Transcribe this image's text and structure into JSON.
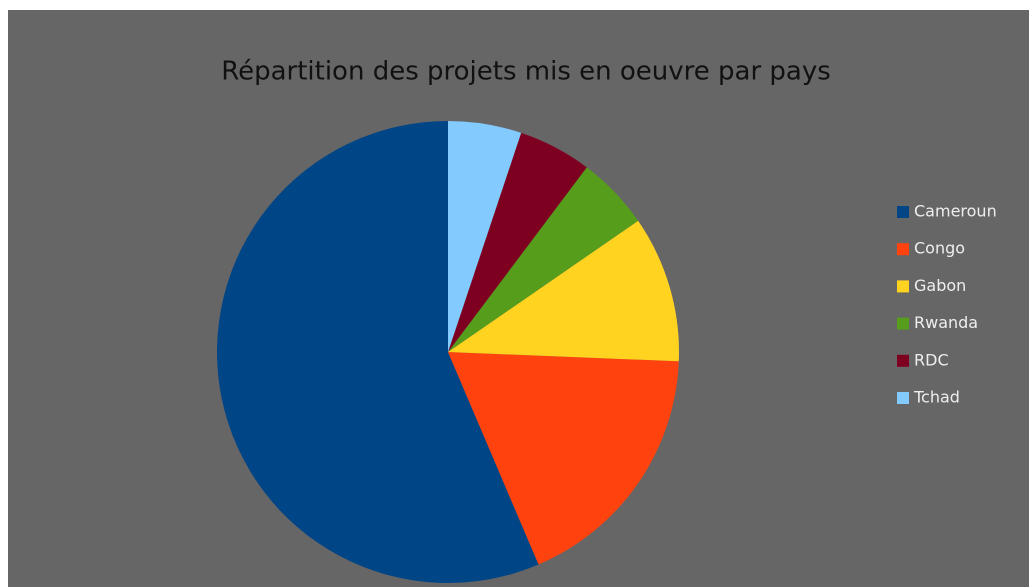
{
  "chart_data": {
    "type": "pie",
    "title": "Répartition des projets mis en oeuvre par pays",
    "categories": [
      "Cameroun",
      "Congo",
      "Gabon",
      "Rwanda",
      "RDC",
      "Tchad"
    ],
    "values": [
      11,
      3.5,
      2,
      1,
      1,
      1
    ],
    "colors": [
      "#004586",
      "#ff420e",
      "#ffd320",
      "#579d1c",
      "#7e0021",
      "#83caff"
    ],
    "legend": "right"
  }
}
